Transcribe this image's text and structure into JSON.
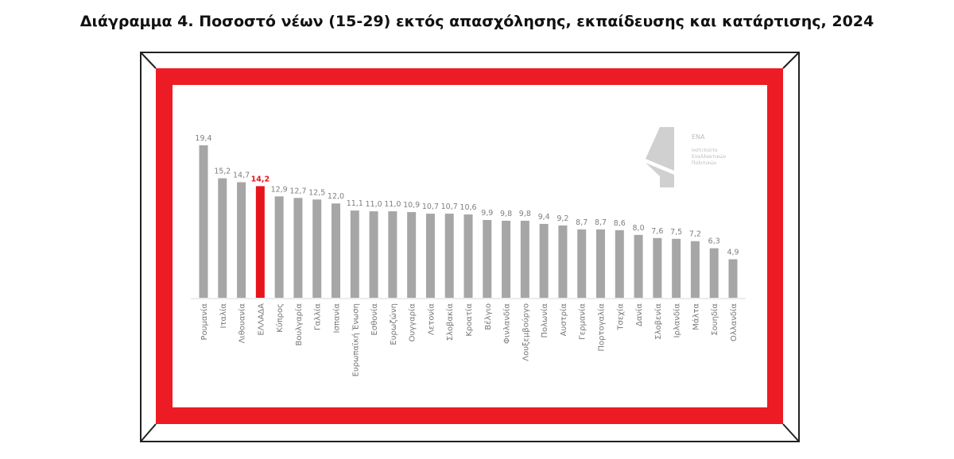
{
  "chart_data": {
    "type": "bar",
    "title": "Διάγραμμα 4. Ποσοστό νέων (15-29) εκτός απασχόλησης, εκπαίδευσης και κατάρτισης, 2024",
    "xlabel": "",
    "ylabel": "",
    "ylim": [
      0,
      20
    ],
    "grid": false,
    "categories": [
      "Ρουμανία",
      "Ιταλία",
      "Λιθουανία",
      "ΕΛΛΑΔΑ",
      "Κύπρος",
      "Βουλγαρία",
      "Γαλλία",
      "Ισπανία",
      "Ευρωπαϊκή Ένωση",
      "Εσθονία",
      "Ευρωζώνη",
      "Ουγγαρία",
      "Λετονία",
      "Σλοβακία",
      "Κροατία",
      "Βέλγιο",
      "Φινλανδία",
      "Λουξεμβούργο",
      "Πολωνία",
      "Αυστρία",
      "Γερμανία",
      "Πορτογαλία",
      "Τσεχία",
      "Δανία",
      "Σλοβενία",
      "Ιρλανδία",
      "Μάλτα",
      "Σουηδία",
      "Ολλανδία"
    ],
    "values": [
      19.4,
      15.2,
      14.7,
      14.2,
      12.9,
      12.7,
      12.5,
      12.0,
      11.1,
      11.0,
      11.0,
      10.9,
      10.7,
      10.7,
      10.6,
      9.9,
      9.8,
      9.8,
      9.4,
      9.2,
      8.7,
      8.7,
      8.6,
      8.0,
      7.6,
      7.5,
      7.2,
      6.3,
      4.9
    ],
    "data_labels": [
      "19,4",
      "15,2",
      "14,7",
      "14,2",
      "12,9",
      "12,7",
      "12,5",
      "12,0",
      "11,1",
      "11,0",
      "11,0",
      "10,9",
      "10,7",
      "10,7",
      "10,6",
      "9,9",
      "9,8",
      "9,8",
      "9,4",
      "9,2",
      "8,7",
      "8,7",
      "8,6",
      "8,0",
      "7,6",
      "7,5",
      "7,2",
      "6,3",
      "4,9"
    ],
    "highlight_category": "ΕΛΛΑΔΑ",
    "colors": {
      "bar": "#a6a6a6",
      "highlight": "#e8141c",
      "frame": "#ed1c24",
      "label": "#7f7f7f"
    }
  },
  "logo": {
    "acronym": "ΕΝΑ",
    "line1": "Ινστιτούτο",
    "line2": "Εναλλακτικών",
    "line3": "Πολιτικών"
  }
}
